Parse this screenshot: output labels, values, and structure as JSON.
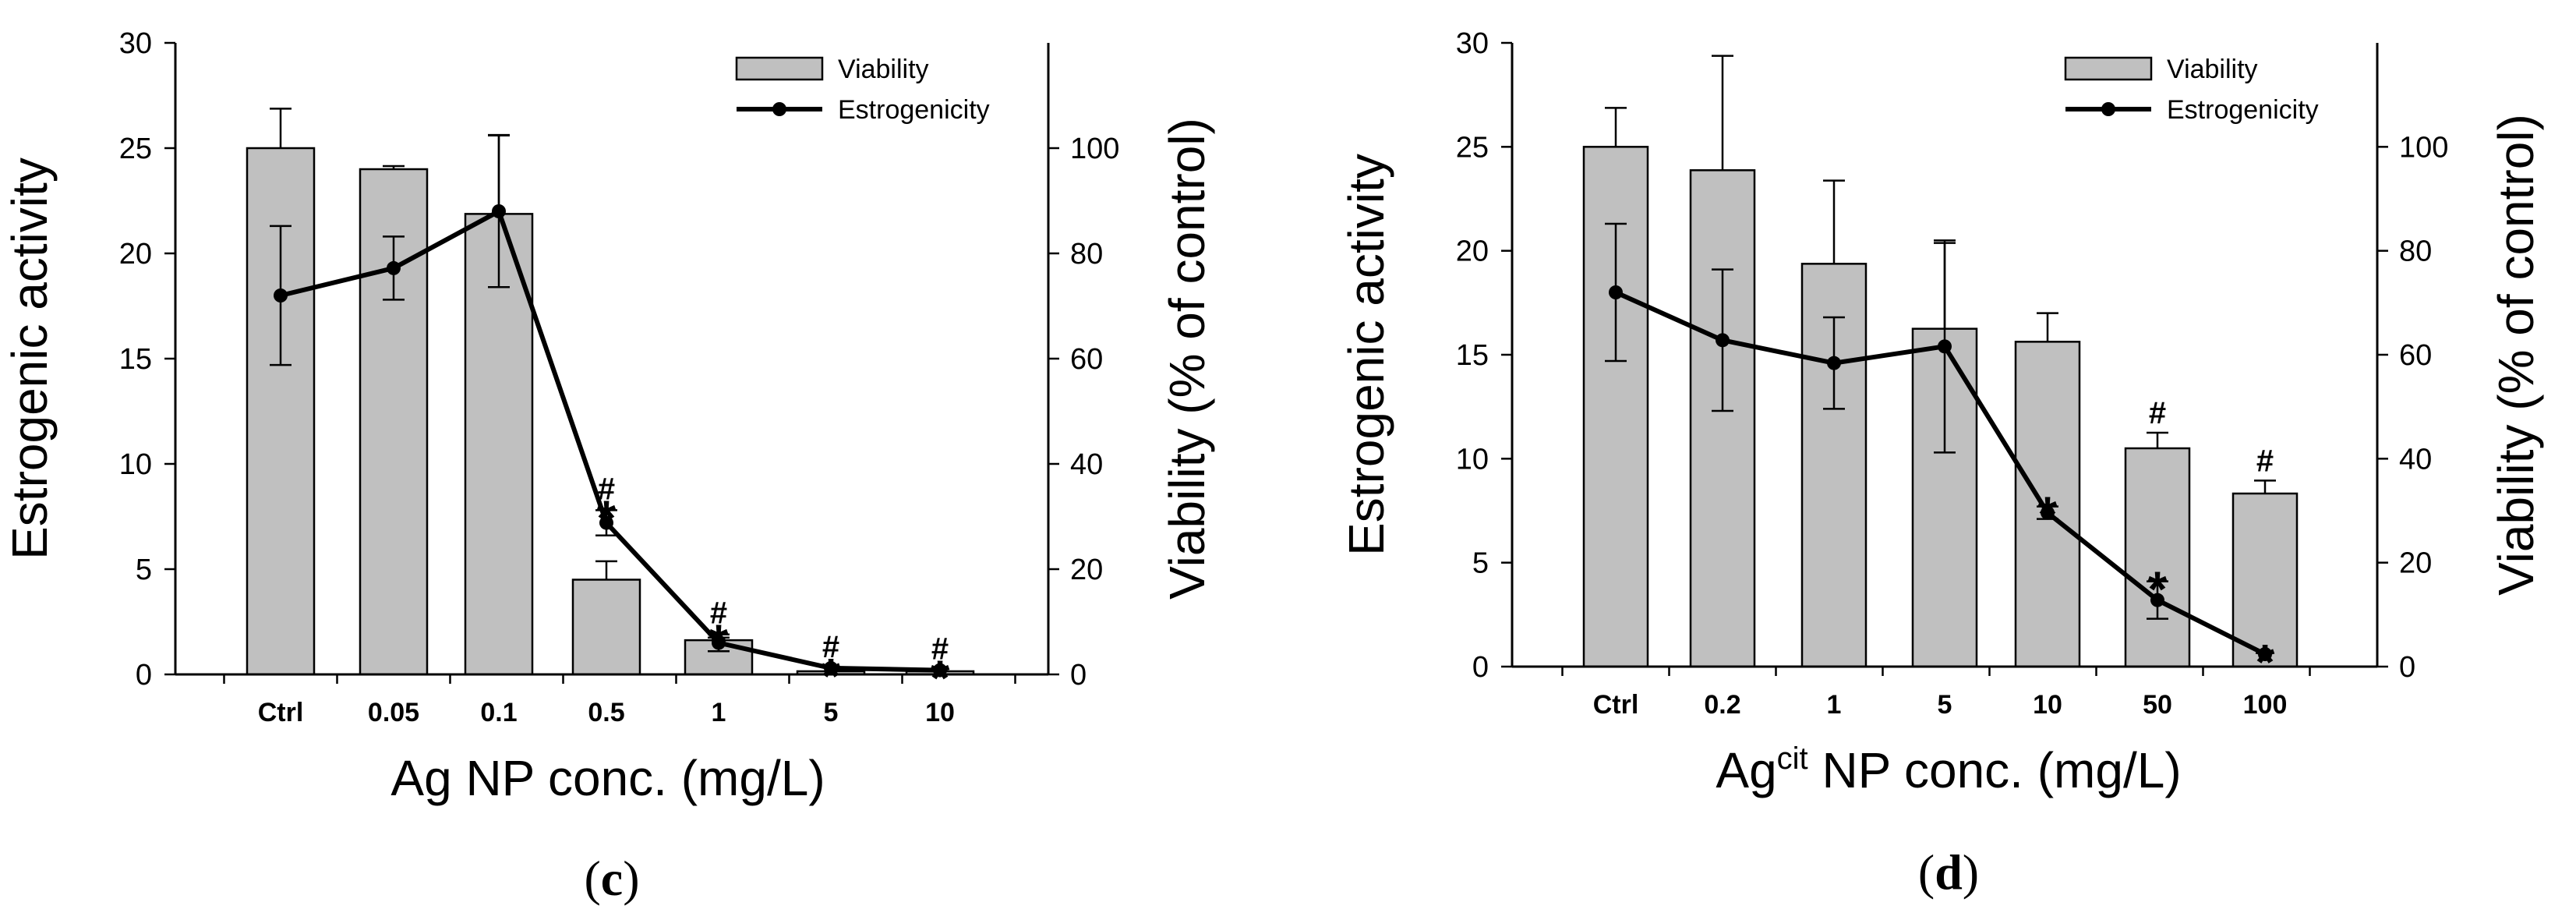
{
  "chart_data": [
    {
      "type": "bar",
      "panel_label": "(c)",
      "xlabel": "Ag NP conc. (mg/L)",
      "ylabel_left": "Estrogenic activity",
      "ylabel_right": "Viability (% of control)",
      "ylim_left": [
        0,
        30
      ],
      "ylim_right": [
        0,
        120
      ],
      "yticks_left": [
        "0",
        "5",
        "10",
        "15",
        "20",
        "25",
        "30"
      ],
      "yticks_right": [
        "0",
        "20",
        "40",
        "60",
        "80",
        "100"
      ],
      "categories": [
        "Ctrl",
        "0.05",
        "0.1",
        "0.5",
        "1",
        "5",
        "10"
      ],
      "legend": {
        "position": "top-right",
        "bar_label": "Viability",
        "line_label": "Estrogenicity"
      },
      "series": [
        {
          "name": "Viability",
          "kind": "bar",
          "axis": "right",
          "values": [
            100,
            96,
            87.5,
            18,
            6.5,
            0.6,
            0.6
          ],
          "errors": [
            7.5,
            0.6,
            15,
            3.5,
            0.5,
            0,
            0
          ]
        },
        {
          "name": "Estrogenicity",
          "kind": "line",
          "axis": "left",
          "values": [
            18,
            19.3,
            22,
            7.2,
            1.5,
            0.3,
            0.2
          ],
          "errors": [
            3.3,
            1.5,
            3.6,
            0.6,
            0.4,
            0,
            0
          ]
        }
      ],
      "annotations": [
        {
          "category": "0.5",
          "symbols": [
            "#",
            "*"
          ]
        },
        {
          "category": "1",
          "symbols": [
            "#",
            "*"
          ]
        },
        {
          "category": "5",
          "symbols": [
            "#",
            "*"
          ]
        },
        {
          "category": "10",
          "symbols": [
            "#",
            "*"
          ]
        }
      ]
    },
    {
      "type": "bar",
      "panel_label": "(d)",
      "xlabel_main": "Ag",
      "xlabel_superscript": "cit",
      "xlabel_rest": " NP conc. (mg/L)",
      "ylabel_left": "Estrogenic activity",
      "ylabel_right": "Viability (% of control)",
      "ylim_left": [
        0,
        30
      ],
      "ylim_right": [
        0,
        120
      ],
      "yticks_left": [
        "0",
        "5",
        "10",
        "15",
        "20",
        "25",
        "30"
      ],
      "yticks_right": [
        "0",
        "20",
        "40",
        "60",
        "80",
        "100"
      ],
      "categories": [
        "Ctrl",
        "0.2",
        "1",
        "5",
        "10",
        "50",
        "100"
      ],
      "legend": {
        "position": "top-right",
        "bar_label": "Viability",
        "line_label": "Estrogenicity"
      },
      "series": [
        {
          "name": "Viability",
          "kind": "bar",
          "axis": "right",
          "values": [
            100,
            95.5,
            77.5,
            65,
            62.5,
            42,
            33.3
          ],
          "errors": [
            7.5,
            22,
            16,
            16.5,
            5.5,
            3,
            2.5
          ]
        },
        {
          "name": "Estrogenicity",
          "kind": "line",
          "axis": "left",
          "values": [
            18,
            15.7,
            14.6,
            15.4,
            7.4,
            3.2,
            0.6
          ],
          "errors": [
            3.3,
            3.4,
            2.2,
            5.1,
            0.3,
            0.9,
            0
          ]
        }
      ],
      "annotations": [
        {
          "category": "10",
          "symbols": [
            "*"
          ]
        },
        {
          "category": "50",
          "symbols": [
            "#",
            "*"
          ]
        },
        {
          "category": "100",
          "symbols": [
            "#",
            "*"
          ]
        }
      ]
    }
  ]
}
